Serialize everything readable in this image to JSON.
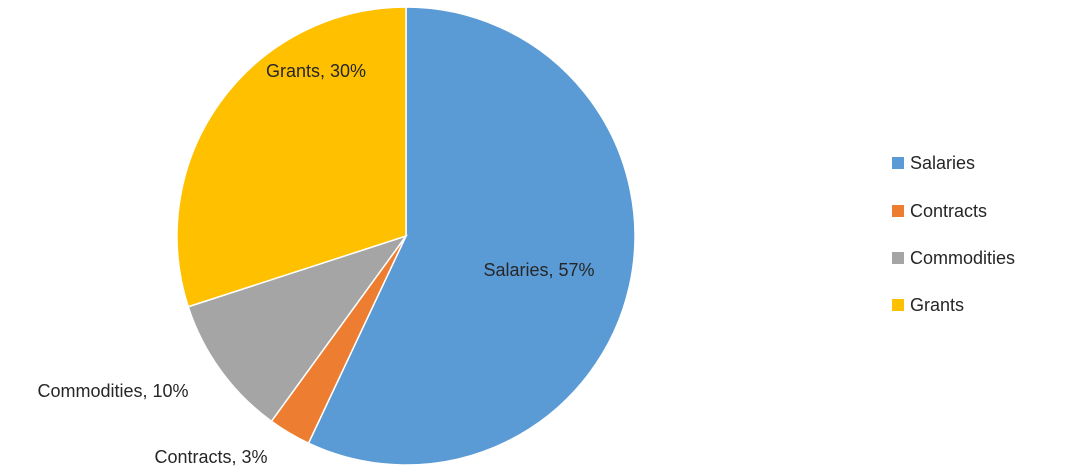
{
  "chart_data": {
    "type": "pie",
    "title": "",
    "categories": [
      "Salaries",
      "Contracts",
      "Commodities",
      "Grants"
    ],
    "values": [
      57,
      3,
      10,
      30
    ],
    "unit": "%",
    "colors": [
      "#5B9BD5",
      "#ED7D31",
      "#A5A5A5",
      "#FFC000"
    ],
    "data_labels": [
      "Salaries, 57%",
      "Contracts, 3%",
      "Commodities, 10%",
      "Grants, 30%"
    ],
    "start_angle_deg": 0,
    "direction": "clockwise",
    "legend": {
      "position": "right",
      "entries": [
        "Salaries",
        "Contracts",
        "Commodities",
        "Grants"
      ]
    }
  }
}
